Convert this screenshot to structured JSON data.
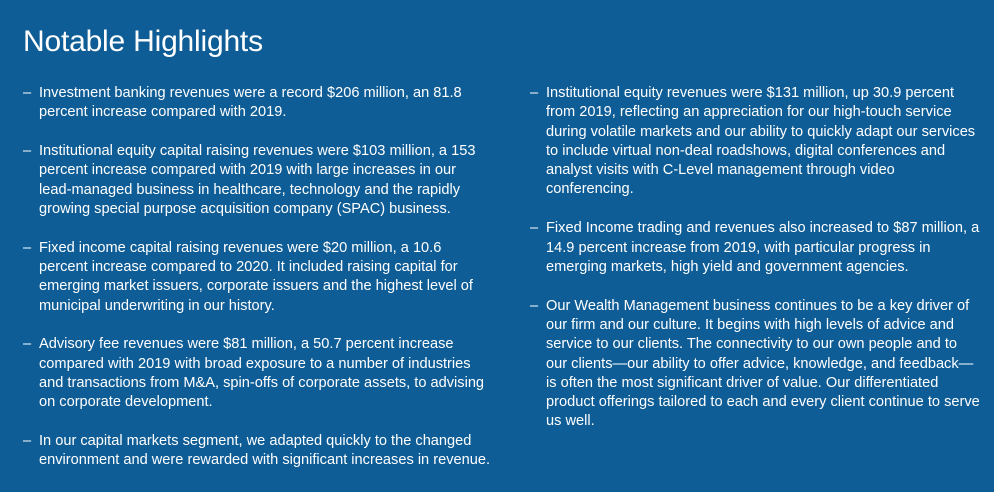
{
  "title": "Notable Highlights",
  "left_items": [
    "Investment banking revenues were a record $206 million, an 81.8 percent increase compared with 2019.",
    "Institutional equity capital raising revenues were $103 million, a 153 percent increase compared with 2019 with large increases in our lead-managed business in healthcare, technology and the rapidly growing special purpose acquisition company (SPAC) business.",
    "Fixed income capital raising revenues were $20 million, a 10.6 percent increase compared to 2020. It included raising capital for emerging market issuers, corporate issuers and the highest level of municipal underwriting in our history.",
    "Advisory fee revenues were $81 million, a 50.7 percent increase compared with 2019 with broad exposure to a number of industries and transactions from M&A, spin-offs of corporate assets, to advising on corporate development.",
    "In our capital markets segment, we adapted quickly to the changed environment and were rewarded with significant increases in revenue."
  ],
  "right_items": [
    "Institutional equity revenues were $131 million, up 30.9 percent from 2019, reflecting an appreciation for our high-touch service during volatile markets and our ability to quickly adapt our services to include virtual non-deal roadshows, digital conferences and analyst visits with C-Level management through video conferencing.",
    "Fixed Income trading and revenues also increased to $87 million, a 14.9 percent increase from 2019, with particular progress in emerging markets, high yield and government agencies.",
    "Our Wealth Management business continues to be a key driver of our firm and our culture. It begins with high levels of advice and service to our clients. The connectivity to our own people and to our clients—our ability to offer advice, knowledge, and feedback—is often the most significant driver of value. Our differentiated product offerings tailored to each and every client continue to serve us well."
  ],
  "bullet_marker": "–",
  "colors": {
    "background": "#0f5d97",
    "text": "#ffffff"
  }
}
